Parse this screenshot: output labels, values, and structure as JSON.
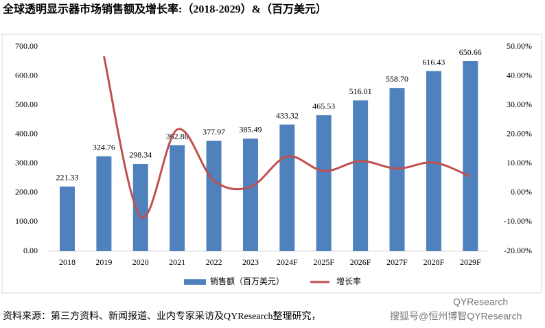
{
  "chart_data": {
    "type": "bar",
    "title": "全球透明显示器市场销售额及增长率:（2018-2029）&（百万美元）",
    "categories": [
      "2018",
      "2019",
      "2020",
      "2021",
      "2022",
      "2023",
      "2024F",
      "2025F",
      "2026F",
      "2027F",
      "2028F",
      "2029F"
    ],
    "series": [
      {
        "name": "销售额（百万美元）",
        "type": "bar",
        "color": "#4f81bd",
        "values": [
          221.33,
          324.76,
          298.34,
          362.88,
          377.97,
          385.49,
          433.32,
          465.53,
          516.01,
          558.7,
          616.43,
          650.66
        ],
        "value_labels": [
          "221.33",
          "324.76",
          "298.34",
          "362.88",
          "377.97",
          "385.49",
          "433.32",
          "465.53",
          "516.01",
          "558.70",
          "616.43",
          "650.66"
        ]
      },
      {
        "name": "增长率",
        "type": "line",
        "axis": "y2",
        "color": "#c0504d",
        "values": [
          null,
          46.73,
          -8.14,
          21.63,
          4.16,
          1.99,
          12.41,
          7.43,
          10.84,
          8.27,
          10.33,
          5.55
        ]
      }
    ],
    "ylim": [
      0,
      700
    ],
    "yticks": [
      {
        "value": 0,
        "label": "0.00"
      },
      {
        "value": 100,
        "label": "100.00"
      },
      {
        "value": 200,
        "label": "200.00"
      },
      {
        "value": 300,
        "label": "300.00"
      },
      {
        "value": 400,
        "label": "400.00"
      },
      {
        "value": 500,
        "label": "500.00"
      },
      {
        "value": 600,
        "label": "600.00"
      },
      {
        "value": 700,
        "label": "700.00"
      }
    ],
    "y2lim": [
      -20,
      50
    ],
    "y2ticks": [
      {
        "value": -20,
        "label": "-20.00%"
      },
      {
        "value": -10,
        "label": "-10.00%"
      },
      {
        "value": 0,
        "label": "0.00%"
      },
      {
        "value": 10,
        "label": "10.00%"
      },
      {
        "value": 20,
        "label": "20.00%"
      },
      {
        "value": 30,
        "label": "30.00%"
      },
      {
        "value": 40,
        "label": "40.00%"
      },
      {
        "value": 50,
        "label": "50.00%"
      }
    ],
    "legend": "bottom",
    "source": "资料来源：第三方资料、新闻报道、业内专家采访及QYResearch整理研究，",
    "watermark": "搜狐号@恒州博智QYResearch",
    "logo": "QYResearch"
  }
}
